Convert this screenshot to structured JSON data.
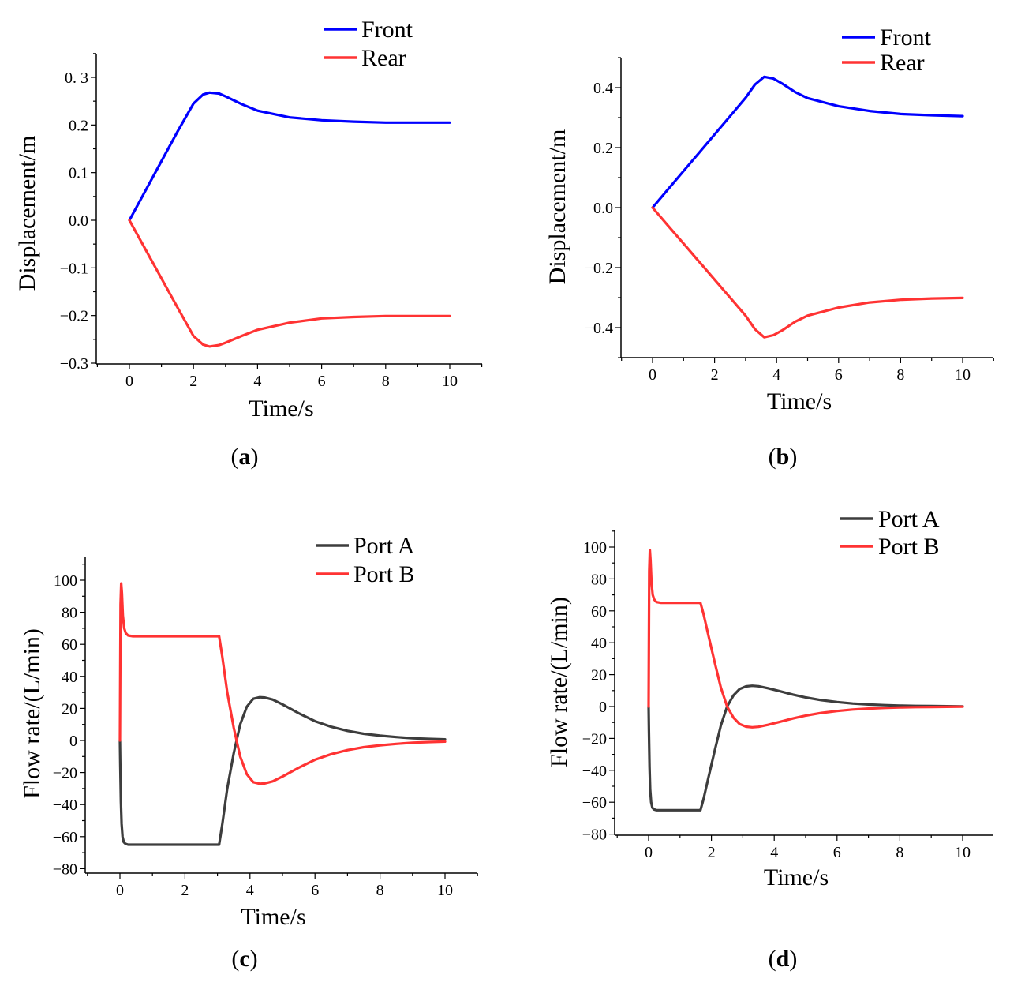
{
  "chart_data": [
    {
      "panel": "a",
      "caption_letter": "a",
      "type": "line",
      "xlabel": "Time/s",
      "ylabel": "Displacement/m",
      "xlim": [
        -1,
        11
      ],
      "ylim": [
        -0.3,
        0.35
      ],
      "xticks": [
        0,
        2,
        4,
        6,
        8,
        10
      ],
      "yticks": [
        -0.3,
        -0.2,
        -0.1,
        0.0,
        0.1,
        0.2,
        0.3
      ],
      "ytick_labels": [
        "−0.3",
        "−0.2",
        "−0.1",
        "0.0",
        "0.1",
        "0.2",
        "0. 3"
      ],
      "legend": "top-right",
      "series": [
        {
          "name": "Front",
          "color": "#0000ff",
          "x": [
            0,
            0.5,
            1,
            1.5,
            2,
            2.3,
            2.5,
            2.8,
            3,
            3.5,
            4,
            5,
            6,
            7,
            8,
            9,
            10
          ],
          "y": [
            0,
            0.062,
            0.124,
            0.186,
            0.245,
            0.264,
            0.268,
            0.266,
            0.26,
            0.244,
            0.23,
            0.216,
            0.21,
            0.207,
            0.205,
            0.205,
            0.205
          ]
        },
        {
          "name": "Rear",
          "color": "#ff3333",
          "x": [
            0,
            0.5,
            1,
            1.5,
            2,
            2.3,
            2.5,
            2.8,
            3,
            3.5,
            4,
            5,
            6,
            7,
            8,
            9,
            10
          ],
          "y": [
            0,
            -0.061,
            -0.122,
            -0.183,
            -0.243,
            -0.261,
            -0.265,
            -0.262,
            -0.257,
            -0.243,
            -0.23,
            -0.215,
            -0.206,
            -0.203,
            -0.201,
            -0.201,
            -0.201
          ]
        }
      ]
    },
    {
      "panel": "b",
      "caption_letter": "b",
      "type": "line",
      "xlabel": "Time/s",
      "ylabel": "Displacement/m",
      "xlim": [
        -1,
        11
      ],
      "ylim": [
        -0.5,
        0.5
      ],
      "xticks": [
        0,
        2,
        4,
        6,
        8,
        10
      ],
      "yticks": [
        -0.4,
        -0.2,
        0.0,
        0.2,
        0.4
      ],
      "ytick_labels": [
        "−0.4",
        "−0.2",
        "0.0",
        "0.2",
        "0.4"
      ],
      "legend": "top-right",
      "series": [
        {
          "name": "Front",
          "color": "#0000ff",
          "x": [
            0,
            0.5,
            1,
            1.5,
            2,
            2.5,
            3,
            3.3,
            3.6,
            3.9,
            4.2,
            4.6,
            5,
            6,
            7,
            8,
            9,
            10
          ],
          "y": [
            0,
            0.061,
            0.122,
            0.183,
            0.244,
            0.305,
            0.366,
            0.41,
            0.436,
            0.43,
            0.412,
            0.385,
            0.365,
            0.338,
            0.322,
            0.312,
            0.308,
            0.305
          ]
        },
        {
          "name": "Rear",
          "color": "#ff3333",
          "x": [
            0,
            0.5,
            1,
            1.5,
            2,
            2.5,
            3,
            3.3,
            3.6,
            3.9,
            4.2,
            4.6,
            5,
            6,
            7,
            8,
            9,
            10
          ],
          "y": [
            0,
            -0.06,
            -0.12,
            -0.18,
            -0.24,
            -0.3,
            -0.36,
            -0.405,
            -0.432,
            -0.425,
            -0.408,
            -0.38,
            -0.36,
            -0.333,
            -0.316,
            -0.307,
            -0.303,
            -0.301
          ]
        }
      ]
    },
    {
      "panel": "c",
      "caption_letter": "c",
      "type": "line",
      "xlabel": "Time/s",
      "ylabel": "Flow rate/(L/min)",
      "xlim": [
        -1,
        11
      ],
      "ylim": [
        -80,
        110
      ],
      "xticks": [
        0,
        2,
        4,
        6,
        8,
        10
      ],
      "yticks": [
        -80,
        -60,
        -40,
        -20,
        0,
        20,
        40,
        60,
        80,
        100
      ],
      "ytick_labels": [
        "−80",
        "−60",
        "−40",
        "−20",
        "0",
        "20",
        "40",
        "60",
        "80",
        "100"
      ],
      "legend": "top-right",
      "series": [
        {
          "name": "Port A",
          "color": "#3d3d3d",
          "x": [
            0,
            0.01,
            0.03,
            0.05,
            0.08,
            0.12,
            0.17,
            0.25,
            0.4,
            1,
            2,
            3.05,
            3.15,
            3.3,
            3.5,
            3.7,
            3.9,
            4.1,
            4.3,
            4.45,
            4.7,
            5,
            5.5,
            6,
            6.5,
            7,
            7.5,
            8,
            8.5,
            9,
            9.5,
            10
          ],
          "y": [
            0,
            -15,
            -38,
            -52,
            -60,
            -63.5,
            -64.5,
            -65,
            -65,
            -65,
            -65,
            -65,
            -52,
            -30,
            -8,
            10,
            21,
            26,
            27,
            26.8,
            25.5,
            22.5,
            17,
            12,
            8.5,
            6,
            4.2,
            3,
            2.1,
            1.4,
            1,
            0.7
          ]
        },
        {
          "name": "Port B",
          "color": "#ff3333",
          "x": [
            0,
            0.01,
            0.02,
            0.04,
            0.06,
            0.09,
            0.13,
            0.18,
            0.25,
            0.4,
            1,
            2,
            3.05,
            3.15,
            3.3,
            3.5,
            3.7,
            3.9,
            4.1,
            4.3,
            4.45,
            4.7,
            5,
            5.5,
            6,
            6.5,
            7,
            7.5,
            8,
            8.5,
            9,
            9.5,
            10
          ],
          "y": [
            0,
            45,
            85,
            98,
            92,
            78,
            70,
            67,
            65.5,
            65,
            65,
            65,
            65,
            52,
            30,
            8,
            -10,
            -21,
            -26,
            -27,
            -26.8,
            -25.5,
            -22.5,
            -17,
            -12,
            -8.5,
            -6,
            -4.2,
            -3,
            -2.1,
            -1.4,
            -1,
            -0.7
          ]
        }
      ]
    },
    {
      "panel": "d",
      "caption_letter": "d",
      "type": "line",
      "xlabel": "Time/s",
      "ylabel": "Flow rate/(L/min)",
      "xlim": [
        -1,
        11
      ],
      "ylim": [
        -80,
        110
      ],
      "xticks": [
        0,
        2,
        4,
        6,
        8,
        10
      ],
      "yticks": [
        -80,
        -60,
        -40,
        -20,
        0,
        20,
        40,
        60,
        80,
        100
      ],
      "ytick_labels": [
        "−80",
        "−60",
        "−40",
        "−20",
        "0",
        "20",
        "40",
        "60",
        "80",
        "100"
      ],
      "legend": "top-right",
      "series": [
        {
          "name": "Port A",
          "color": "#3d3d3d",
          "x": [
            0,
            0.01,
            0.03,
            0.05,
            0.08,
            0.12,
            0.17,
            0.25,
            0.4,
            1,
            1.65,
            1.75,
            1.9,
            2.1,
            2.3,
            2.5,
            2.7,
            2.9,
            3.1,
            3.3,
            3.5,
            3.8,
            4.2,
            4.6,
            5,
            5.5,
            6,
            6.5,
            7,
            7.5,
            8,
            8.5,
            9,
            9.5,
            10
          ],
          "y": [
            0,
            -15,
            -38,
            -52,
            -60,
            -63.5,
            -64.5,
            -65,
            -65,
            -65,
            -65,
            -58,
            -45,
            -28,
            -12,
            0,
            7,
            11,
            12.6,
            13,
            12.7,
            11.5,
            9.5,
            7.5,
            5.7,
            4,
            2.8,
            1.9,
            1.3,
            0.9,
            0.6,
            0.4,
            0.3,
            0.2,
            0.1
          ]
        },
        {
          "name": "Port B",
          "color": "#ff3333",
          "x": [
            0,
            0.01,
            0.02,
            0.04,
            0.06,
            0.09,
            0.13,
            0.18,
            0.25,
            0.4,
            1,
            1.65,
            1.75,
            1.9,
            2.1,
            2.3,
            2.5,
            2.7,
            2.9,
            3.1,
            3.3,
            3.5,
            3.8,
            4.2,
            4.6,
            5,
            5.5,
            6,
            6.5,
            7,
            7.5,
            8,
            8.5,
            9,
            9.5,
            10
          ],
          "y": [
            0,
            45,
            85,
            98,
            92,
            78,
            70,
            67,
            65.5,
            65,
            65,
            65,
            58,
            45,
            28,
            12,
            0,
            -7,
            -11,
            -12.6,
            -13,
            -12.7,
            -11.5,
            -9.5,
            -7.5,
            -5.7,
            -4,
            -2.8,
            -1.9,
            -1.3,
            -0.9,
            -0.6,
            -0.4,
            -0.3,
            -0.2,
            -0.1
          ]
        }
      ]
    }
  ]
}
